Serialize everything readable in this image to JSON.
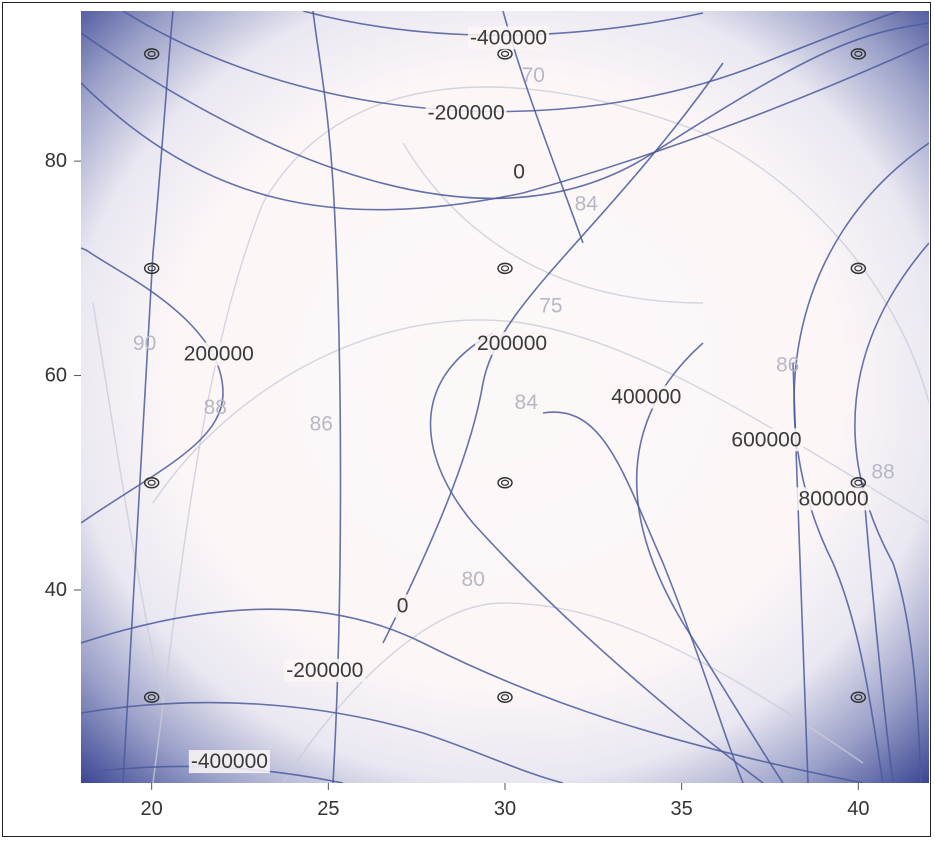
{
  "chart_data": {
    "type": "contour",
    "title": "",
    "xlabel": "",
    "ylabel": "",
    "xlim": [
      18,
      42
    ],
    "ylim": [
      22,
      94
    ],
    "x_ticks": [
      "20",
      "25",
      "30",
      "35",
      "40"
    ],
    "y_ticks": [
      "40",
      "60",
      "80"
    ],
    "grid": false,
    "colors": {
      "background": "#fdf8f8",
      "edge_shade": "#3c4794",
      "contour_dark": "#4a5a9c",
      "contour_light": "#c8ccd8",
      "marker": "#333333"
    },
    "design_points": [
      {
        "x": 20,
        "y": 30
      },
      {
        "x": 20,
        "y": 50
      },
      {
        "x": 20,
        "y": 70
      },
      {
        "x": 20,
        "y": 90
      },
      {
        "x": 30,
        "y": 30
      },
      {
        "x": 30,
        "y": 50
      },
      {
        "x": 30,
        "y": 70
      },
      {
        "x": 30,
        "y": 90
      },
      {
        "x": 40,
        "y": 30
      },
      {
        "x": 40,
        "y": 50
      },
      {
        "x": 40,
        "y": 70
      },
      {
        "x": 40,
        "y": 90
      }
    ],
    "contour_labels": [
      {
        "text": "-400000",
        "x": 30.1,
        "y": 91.5,
        "series": "dark"
      },
      {
        "text": "-200000",
        "x": 28.9,
        "y": 84.5,
        "series": "dark"
      },
      {
        "text": "0",
        "x": 30.4,
        "y": 79.0,
        "series": "dark"
      },
      {
        "text": "200000",
        "x": 21.9,
        "y": 62.0,
        "series": "dark"
      },
      {
        "text": "200000",
        "x": 30.2,
        "y": 63.0,
        "series": "dark"
      },
      {
        "text": "400000",
        "x": 34.0,
        "y": 58.0,
        "series": "dark"
      },
      {
        "text": "600000",
        "x": 37.4,
        "y": 54.0,
        "series": "dark"
      },
      {
        "text": "800000",
        "x": 39.3,
        "y": 48.5,
        "series": "dark"
      },
      {
        "text": "0",
        "x": 27.1,
        "y": 38.5,
        "series": "dark"
      },
      {
        "text": "-200000",
        "x": 24.9,
        "y": 32.5,
        "series": "dark"
      },
      {
        "text": "-400000",
        "x": 22.2,
        "y": 24.0,
        "series": "dark"
      },
      {
        "text": "70",
        "x": 30.8,
        "y": 88.0,
        "series": "light"
      },
      {
        "text": "84",
        "x": 32.3,
        "y": 76.0,
        "series": "light"
      },
      {
        "text": "75",
        "x": 31.3,
        "y": 66.5,
        "series": "light"
      },
      {
        "text": "84",
        "x": 30.6,
        "y": 57.5,
        "series": "light"
      },
      {
        "text": "86",
        "x": 24.8,
        "y": 55.5,
        "series": "light"
      },
      {
        "text": "90",
        "x": 19.8,
        "y": 63.0,
        "series": "light"
      },
      {
        "text": "88",
        "x": 21.8,
        "y": 57.0,
        "series": "light"
      },
      {
        "text": "86",
        "x": 38.0,
        "y": 61.0,
        "series": "light"
      },
      {
        "text": "88",
        "x": 40.7,
        "y": 51.0,
        "series": "light"
      },
      {
        "text": "80",
        "x": 29.1,
        "y": 41.0,
        "series": "light"
      }
    ]
  }
}
